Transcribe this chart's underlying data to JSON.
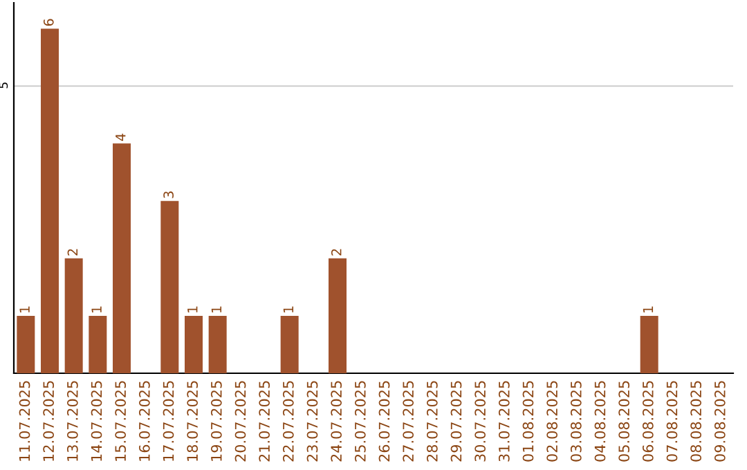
{
  "chart_data": {
    "type": "bar",
    "categories": [
      "11.07.2025",
      "12.07.2025",
      "13.07.2025",
      "14.07.2025",
      "15.07.2025",
      "16.07.2025",
      "17.07.2025",
      "18.07.2025",
      "19.07.2025",
      "20.07.2025",
      "21.07.2025",
      "22.07.2025",
      "23.07.2025",
      "24.07.2025",
      "25.07.2025",
      "26.07.2025",
      "27.07.2025",
      "28.07.2025",
      "29.07.2025",
      "30.07.2025",
      "31.07.2025",
      "01.08.2025",
      "02.08.2025",
      "03.08.2025",
      "04.08.2025",
      "05.08.2025",
      "06.08.2025",
      "07.08.2025",
      "08.08.2025",
      "09.08.2025"
    ],
    "values": [
      1,
      6,
      2,
      1,
      4,
      0,
      3,
      1,
      1,
      0,
      0,
      1,
      0,
      2,
      0,
      0,
      0,
      0,
      0,
      0,
      0,
      0,
      0,
      0,
      0,
      0,
      1,
      0,
      0,
      0
    ],
    "value_labels": [
      "1",
      "6",
      "2",
      "1",
      "4",
      null,
      "3",
      "1",
      "1",
      null,
      null,
      "1",
      null,
      "2",
      null,
      null,
      null,
      null,
      null,
      null,
      null,
      null,
      null,
      null,
      null,
      null,
      "1",
      null,
      null,
      null
    ],
    "color": "#a0522d",
    "ylim": [
      0,
      6.45
    ],
    "yticks": [
      5
    ],
    "grid": "y",
    "legend": false
  }
}
